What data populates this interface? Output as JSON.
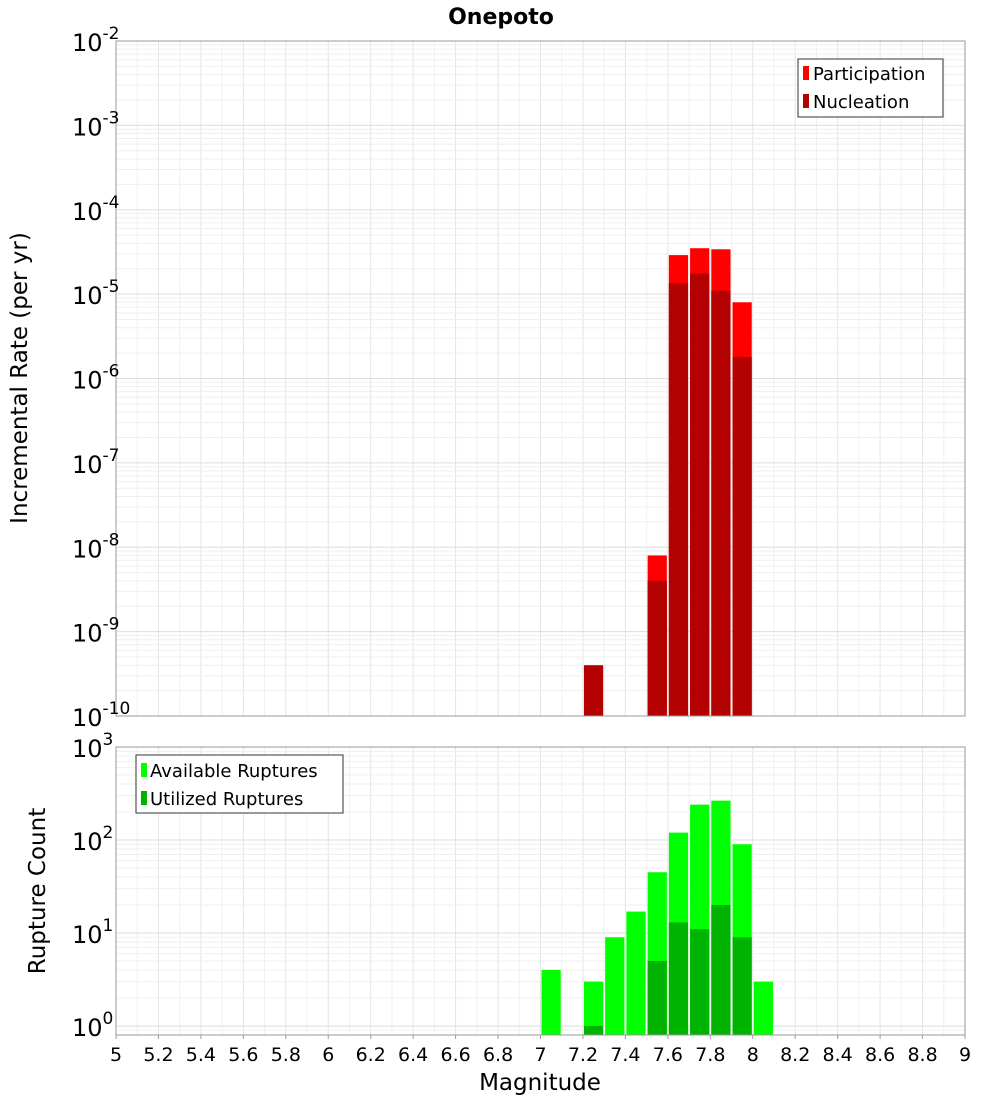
{
  "chart_data": [
    {
      "type": "bar",
      "title": "Onepoto",
      "xlabel": "",
      "ylabel": "Incremental Rate (per yr)",
      "xlim": [
        5,
        9
      ],
      "ylim": [
        1e-10,
        0.01
      ],
      "yscale": "log",
      "grid": true,
      "bin_width": 0.1,
      "legend_position": "top-right",
      "y_tick_labels": [
        {
          "base": "10",
          "exp": "-2"
        },
        {
          "base": "10",
          "exp": "-3"
        },
        {
          "base": "10",
          "exp": "-4"
        },
        {
          "base": "10",
          "exp": "-5"
        },
        {
          "base": "10",
          "exp": "-6"
        },
        {
          "base": "10",
          "exp": "-7"
        },
        {
          "base": "10",
          "exp": "-8"
        },
        {
          "base": "10",
          "exp": "-9"
        },
        {
          "base": "10",
          "exp": "-10"
        }
      ],
      "series": [
        {
          "name": "Participation",
          "color": "#ff0000",
          "x": [
            7.55,
            7.65,
            7.75,
            7.85,
            7.95
          ],
          "values": [
            8e-09,
            2.9e-05,
            3.5e-05,
            3.4e-05,
            8e-06
          ]
        },
        {
          "name": "Nucleation",
          "color": "#b30000",
          "x": [
            7.25,
            7.55,
            7.65,
            7.75,
            7.85,
            7.95
          ],
          "values": [
            4e-10,
            4e-09,
            1.35e-05,
            1.75e-05,
            1.1e-05,
            1.8e-06
          ]
        }
      ]
    },
    {
      "type": "bar",
      "title": "",
      "xlabel": "Magnitude",
      "ylabel": "Rupture Count",
      "xlim": [
        5,
        9
      ],
      "ylim": [
        0.8,
        1000
      ],
      "yscale": "log",
      "grid": true,
      "bin_width": 0.1,
      "legend_position": "top-left",
      "y_tick_labels": [
        {
          "base": "10",
          "exp": "3"
        },
        {
          "base": "10",
          "exp": "2"
        },
        {
          "base": "10",
          "exp": "1"
        },
        {
          "base": "10",
          "exp": "0"
        }
      ],
      "x_tick_labels": [
        "5",
        "5.2",
        "5.4",
        "5.6",
        "5.8",
        "6",
        "6.2",
        "6.4",
        "6.6",
        "6.8",
        "7",
        "7.2",
        "7.4",
        "7.6",
        "7.8",
        "8",
        "8.2",
        "8.4",
        "8.6",
        "8.8",
        "9"
      ],
      "series": [
        {
          "name": "Available Ruptures",
          "color": "#00ff00",
          "x": [
            7.05,
            7.25,
            7.35,
            7.45,
            7.55,
            7.65,
            7.75,
            7.85,
            7.95,
            8.05
          ],
          "values": [
            4,
            3,
            9,
            17,
            45,
            120,
            240,
            265,
            90,
            3
          ]
        },
        {
          "name": "Utilized Ruptures",
          "color": "#00b300",
          "x": [
            7.25,
            7.55,
            7.65,
            7.75,
            7.85,
            7.95
          ],
          "values": [
            1,
            5,
            13,
            11,
            20,
            9
          ]
        }
      ]
    }
  ]
}
